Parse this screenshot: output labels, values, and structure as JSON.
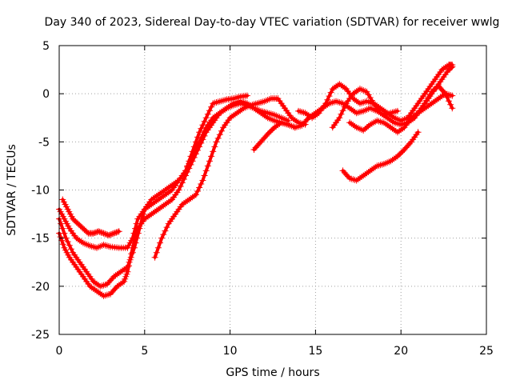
{
  "chart_data": {
    "type": "scatter",
    "title": "Day 340 of 2023, Sidereal Day-to-day VTEC variation (SDTVAR) for receiver wwlg",
    "xlabel": "GPS time / hours",
    "ylabel": "SDTVAR / TECUs",
    "xlim": [
      0,
      25
    ],
    "ylim": [
      -25,
      5
    ],
    "xticks": [
      "0",
      "5",
      "10",
      "15",
      "20",
      "25"
    ],
    "yticks": [
      "5",
      "0",
      "-5",
      "-10",
      "-15",
      "-20",
      "-25"
    ],
    "xtick_values": [
      0,
      5,
      10,
      15,
      20,
      25
    ],
    "ytick_values": [
      5,
      0,
      -5,
      -10,
      -15,
      -20,
      -25
    ],
    "grid": true,
    "marker": "plus",
    "color": "#ff0000",
    "series": [
      {
        "x": [
          0.0,
          0.3,
          0.6,
          1.0,
          1.4,
          1.8,
          2.2,
          2.6,
          3.0,
          3.5,
          4.0,
          4.3,
          4.6,
          5.0,
          5.4,
          5.8,
          6.2,
          6.6,
          7.0,
          7.4,
          7.8,
          8.2,
          8.6,
          9.0,
          9.4,
          9.8,
          10.2,
          10.6,
          11.0
        ],
        "y": [
          -12.0,
          -13.0,
          -14.0,
          -15.0,
          -15.5,
          -15.8,
          -16.0,
          -15.7,
          -15.9,
          -16.0,
          -16.0,
          -15.0,
          -13.0,
          -12.0,
          -11.5,
          -11.0,
          -10.5,
          -10.0,
          -9.0,
          -8.0,
          -6.0,
          -4.0,
          -2.5,
          -1.0,
          -0.8,
          -0.6,
          -0.5,
          -0.3,
          -0.2
        ]
      },
      {
        "x": [
          0.0,
          0.3,
          0.6,
          1.0,
          1.4,
          1.8,
          2.2,
          2.6,
          3.0,
          3.4,
          3.8,
          4.0,
          4.3,
          4.6,
          5.0,
          5.4,
          5.8,
          6.2,
          6.6,
          7.0,
          7.4,
          7.8,
          8.2,
          8.6,
          9.0,
          9.4,
          9.8,
          10.2,
          10.6,
          11.0,
          11.4,
          11.8,
          12.2,
          12.6,
          13.0,
          13.4,
          13.8
        ],
        "y": [
          -14.5,
          -16.0,
          -17.0,
          -18.0,
          -19.0,
          -20.0,
          -20.5,
          -21.0,
          -20.8,
          -20.0,
          -19.5,
          -18.5,
          -16.0,
          -14.0,
          -13.0,
          -12.5,
          -12.0,
          -11.5,
          -11.0,
          -10.0,
          -8.5,
          -7.0,
          -5.5,
          -4.0,
          -3.0,
          -2.0,
          -1.5,
          -1.0,
          -0.8,
          -1.0,
          -1.5,
          -2.0,
          -2.5,
          -2.8,
          -3.0,
          -3.2,
          -3.5
        ]
      },
      {
        "x": [
          0.0,
          0.4,
          0.8,
          1.2,
          1.6,
          2.0,
          2.4,
          2.8,
          3.2,
          3.6,
          4.0,
          4.4,
          4.7,
          5.0,
          5.4,
          5.8,
          6.2,
          6.6,
          7.0,
          7.4,
          7.8,
          8.2,
          8.6,
          9.0,
          9.4,
          9.8,
          10.2,
          10.6,
          11.0,
          11.4,
          11.8,
          12.2,
          12.6,
          13.0,
          13.4
        ],
        "y": [
          -13.0,
          -15.0,
          -16.5,
          -17.5,
          -18.5,
          -19.5,
          -20.0,
          -19.8,
          -19.0,
          -18.5,
          -18.0,
          -16.0,
          -14.0,
          -12.0,
          -11.0,
          -10.5,
          -10.0,
          -9.5,
          -9.0,
          -8.0,
          -6.5,
          -5.0,
          -3.5,
          -2.5,
          -2.0,
          -1.5,
          -1.2,
          -1.0,
          -1.2,
          -1.5,
          -1.8,
          -2.0,
          -2.2,
          -2.5,
          -2.8
        ]
      },
      {
        "x": [
          5.6,
          6.0,
          6.4,
          6.8,
          7.2,
          7.6,
          8.0,
          8.4,
          8.8,
          9.2,
          9.6,
          10.0,
          10.4,
          10.8,
          11.2,
          11.6,
          12.0,
          12.4,
          12.8,
          13.2,
          13.6,
          14.0,
          14.4
        ],
        "y": [
          -17.0,
          -15.0,
          -13.5,
          -12.5,
          -11.5,
          -11.0,
          -10.5,
          -9.0,
          -7.0,
          -5.0,
          -3.5,
          -2.5,
          -2.0,
          -1.5,
          -1.2,
          -1.0,
          -0.8,
          -0.5,
          -0.5,
          -1.5,
          -2.5,
          -3.0,
          -3.2
        ]
      },
      {
        "x": [
          0.2,
          0.5,
          0.8,
          1.1,
          1.4,
          1.7,
          2.0,
          2.3,
          2.6,
          2.9,
          3.2,
          3.5
        ],
        "y": [
          -11.0,
          -12.0,
          -13.0,
          -13.5,
          -14.0,
          -14.5,
          -14.5,
          -14.3,
          -14.5,
          -14.7,
          -14.5,
          -14.3
        ]
      },
      {
        "x": [
          11.4,
          11.8,
          12.2,
          12.6,
          13.0,
          13.4,
          13.8,
          14.2,
          14.6,
          15.0,
          15.4,
          15.8,
          16.2,
          16.6,
          17.0,
          17.4,
          17.8,
          18.2,
          18.6,
          19.0,
          19.4,
          19.8
        ],
        "y": [
          -5.8,
          -5.0,
          -4.2,
          -3.5,
          -3.0,
          -3.2,
          -3.5,
          -3.3,
          -2.5,
          -2.0,
          -1.5,
          -1.0,
          -0.8,
          -1.0,
          -1.5,
          -2.0,
          -1.8,
          -1.5,
          -1.8,
          -2.2,
          -2.0,
          -1.8
        ]
      },
      {
        "x": [
          14.0,
          14.4,
          14.8,
          15.2,
          15.6,
          16.0,
          16.4,
          16.8,
          17.2,
          17.6,
          18.0,
          18.4,
          18.8,
          19.2,
          19.6,
          20.0,
          20.4,
          20.8,
          21.2,
          21.6,
          22.0,
          22.4,
          22.8,
          23.0
        ],
        "y": [
          -1.8,
          -2.0,
          -2.5,
          -2.0,
          -1.0,
          0.5,
          1.0,
          0.5,
          -0.5,
          -1.0,
          -0.8,
          -1.0,
          -1.5,
          -2.0,
          -2.5,
          -2.8,
          -2.5,
          -1.5,
          -0.5,
          0.5,
          1.5,
          2.5,
          3.0,
          3.0
        ]
      },
      {
        "x": [
          16.0,
          16.4,
          16.8,
          17.2,
          17.6,
          18.0,
          18.4,
          18.8,
          19.2,
          19.6,
          20.0,
          20.4,
          20.8,
          21.2,
          21.6,
          22.0,
          22.4,
          22.8,
          23.0
        ],
        "y": [
          -3.5,
          -2.5,
          -1.0,
          0.0,
          0.5,
          0.2,
          -1.0,
          -2.0,
          -2.5,
          -3.0,
          -3.2,
          -3.0,
          -2.5,
          -1.5,
          -0.5,
          0.5,
          1.5,
          2.5,
          2.8
        ]
      },
      {
        "x": [
          17.0,
          17.4,
          17.8,
          18.2,
          18.6,
          19.0,
          19.4,
          19.8,
          20.2,
          20.6,
          21.0,
          21.4,
          21.8,
          22.2,
          22.6,
          23.0
        ],
        "y": [
          -3.0,
          -3.5,
          -3.8,
          -3.2,
          -2.8,
          -3.0,
          -3.5,
          -4.0,
          -3.5,
          -2.5,
          -2.0,
          -1.5,
          -1.0,
          -0.5,
          0.0,
          -0.2
        ]
      },
      {
        "x": [
          16.6,
          17.0,
          17.4,
          17.8,
          18.2,
          18.6,
          19.0,
          19.4,
          19.8,
          20.2,
          20.6,
          21.0
        ],
        "y": [
          -8.0,
          -8.8,
          -9.0,
          -8.5,
          -8.0,
          -7.5,
          -7.3,
          -7.0,
          -6.5,
          -5.8,
          -5.0,
          -4.0
        ]
      },
      {
        "x": [
          21.0,
          21.4,
          21.8,
          22.2,
          22.6,
          23.0
        ],
        "y": [
          -2.0,
          -1.0,
          0.2,
          0.8,
          0.0,
          -1.5
        ]
      }
    ]
  }
}
